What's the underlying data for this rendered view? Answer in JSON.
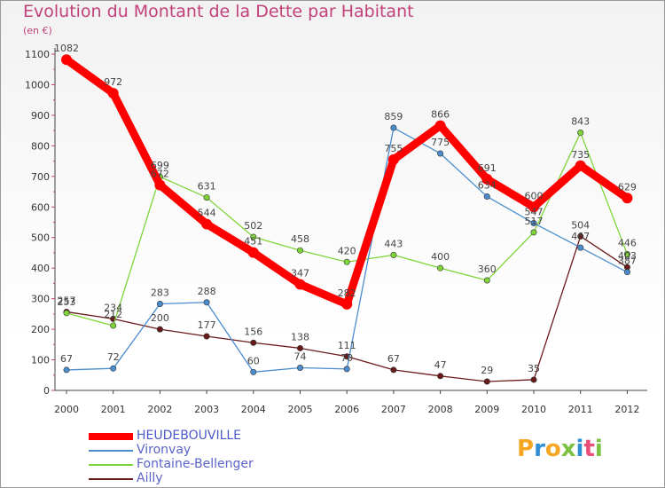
{
  "chart_data": {
    "type": "line",
    "title": "Evolution du Montant de la Dette par Habitant",
    "unit_label": "(en €)",
    "x": [
      "2000",
      "2001",
      "2002",
      "2003",
      "2004",
      "2005",
      "2006",
      "2007",
      "2008",
      "2009",
      "2010",
      "2011",
      "2012"
    ],
    "yticks": [
      "0",
      "100",
      "200",
      "300",
      "400",
      "500",
      "600",
      "700",
      "800",
      "900",
      "1000",
      "1100"
    ],
    "ylim": [
      0,
      1100
    ],
    "grid": false,
    "legend_position": "bottom-left",
    "series": [
      {
        "name": "HEUDEBOUVILLE",
        "color": "#ff0000",
        "values": [
          1082,
          972,
          672,
          544,
          451,
          347,
          282,
          755,
          866,
          691,
          600,
          735,
          629
        ]
      },
      {
        "name": "Vironvay",
        "color": "#4a8ccd",
        "values": [
          67,
          72,
          283,
          288,
          60,
          74,
          70,
          859,
          775,
          634,
          547,
          467,
          387
        ]
      },
      {
        "name": "Fontaine-Bellenger",
        "color": "#7fd43a",
        "values": [
          253,
          212,
          699,
          631,
          502,
          458,
          420,
          443,
          400,
          360,
          517,
          843,
          446
        ]
      },
      {
        "name": "Ailly",
        "color": "#6b1a1a",
        "values": [
          257,
          234,
          200,
          177,
          156,
          138,
          111,
          67,
          47,
          29,
          35,
          504,
          403
        ]
      }
    ]
  },
  "logo": {
    "letters": [
      "P",
      "r",
      "o",
      "x",
      "i",
      "t",
      "i"
    ],
    "colors": [
      "#f5a623",
      "#2e8fd6",
      "#f5a623",
      "#7cc242",
      "#2e8fd6",
      "#e94e77",
      "#7cc242"
    ]
  }
}
